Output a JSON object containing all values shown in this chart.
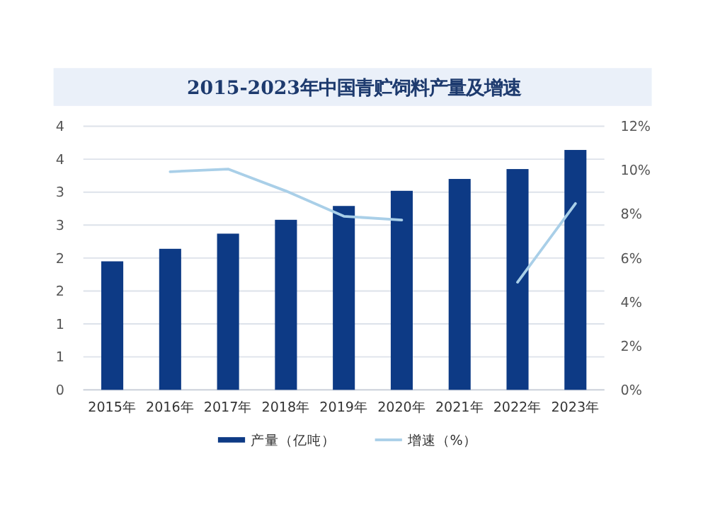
{
  "chart_data": {
    "type": "bar",
    "title": "2015-2023年中国青贮饲料产量及增速",
    "categories": [
      "2015年",
      "2016年",
      "2017年",
      "2018年",
      "2019年",
      "2020年",
      "2021年",
      "2022年",
      "2023年"
    ],
    "series": [
      {
        "name": "产量（亿吨）",
        "color": "#0d3a85",
        "values": [
          1.95,
          2.14,
          2.37,
          2.58,
          2.79,
          3.02,
          3.2,
          3.35,
          3.64
        ]
      },
      {
        "name": "增速（%）",
        "type": "line",
        "axis": "y2",
        "color": "#a9cfe8",
        "values": [
          null,
          9.93,
          10.05,
          9.05,
          7.9,
          7.73,
          null,
          4.9,
          8.48
        ]
      }
    ],
    "ylim": [
      0,
      4
    ],
    "yticks": [
      0,
      {
        "value": 0.5,
        "label": "1"
      },
      1,
      {
        "value": 1.5,
        "label": "2"
      },
      2,
      {
        "value": 2.5,
        "label": "3"
      },
      3,
      {
        "value": 3.5,
        "label": "4"
      },
      4
    ],
    "y2lim": [
      0,
      12
    ],
    "y2ticks": [
      {
        "value": 0,
        "label": "0%"
      },
      {
        "value": 2,
        "label": "2%"
      },
      {
        "value": 4,
        "label": "4%"
      },
      {
        "value": 6,
        "label": "6%"
      },
      {
        "value": 8,
        "label": "8%"
      },
      {
        "value": 10,
        "label": "10%"
      },
      {
        "value": 12,
        "label": "12%"
      }
    ],
    "grid": "y",
    "legend": "bottom",
    "marker": "none",
    "line_style": "solid"
  }
}
